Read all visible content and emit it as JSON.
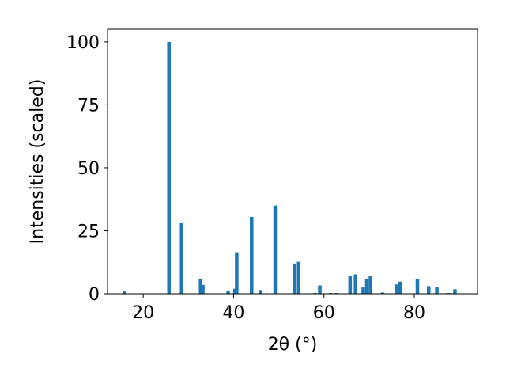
{
  "chart_data": {
    "type": "bar",
    "x_label": "2θ (°)",
    "y_label": "Intensities (scaled)",
    "x": [
      15.9,
      25.7,
      28.5,
      32.7,
      33.2,
      38.8,
      40.3,
      40.7,
      44.0,
      46.0,
      49.2,
      53.5,
      54.4,
      58.0,
      59.1,
      61.5,
      62.8,
      65.8,
      67.0,
      68.7,
      69.5,
      70.3,
      73.0,
      76.2,
      76.9,
      80.7,
      83.2,
      85.0,
      87.5,
      89.0
    ],
    "values": [
      1,
      100,
      28,
      6,
      3.5,
      1,
      2,
      16.5,
      30.5,
      1.5,
      35,
      12,
      12.7,
      0.3,
      3.3,
      0.3,
      0.3,
      7,
      7.7,
      2.5,
      6,
      7,
      0.5,
      3.7,
      4.8,
      6,
      3,
      2.5,
      0.3,
      1.8
    ],
    "color": "#1f77b4",
    "xlim": [
      12.1,
      94
    ],
    "ylim": [
      0,
      105
    ],
    "xticks": [
      20,
      40,
      60,
      80
    ],
    "yticks": [
      0,
      25,
      50,
      75,
      100
    ],
    "grid": false
  }
}
